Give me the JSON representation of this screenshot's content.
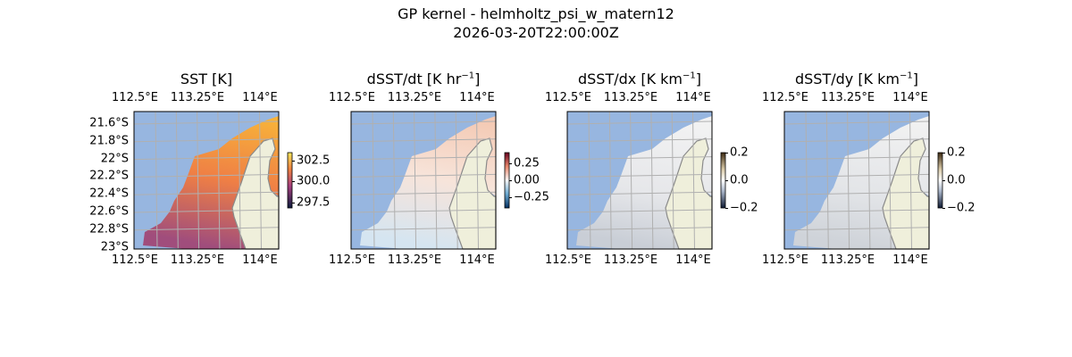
{
  "figure": {
    "title": "GP kernel - helmholtz_psi_w_matern12",
    "subtitle": "2026-03-20T22:00:00Z"
  },
  "colors": {
    "ocean": "#97b6e0",
    "land": "#efefdb",
    "coast": "#8a8a8a",
    "grid": "#b0b0b0"
  },
  "chart_data": [
    {
      "type": "heatmap",
      "title": "SST [K]",
      "colormap": "thermal",
      "xticks": [
        "112.5°E",
        "113.25°E",
        "114°E"
      ],
      "yticks": [
        "21.6°S",
        "21.8°S",
        "22°S",
        "22.2°S",
        "22.4°S",
        "22.6°S",
        "22.8°S",
        "23°S"
      ],
      "colorbar_ticks": [
        "302.5",
        "300.0",
        "297.5"
      ],
      "colorbar_range": [
        296.8,
        303.5
      ]
    },
    {
      "type": "heatmap",
      "title": "dSST/dt [K hr",
      "title_sup": "−1",
      "title_end": "]",
      "colormap": "RdBu_r",
      "xticks": [
        "112.5°E",
        "113.25°E",
        "114°E"
      ],
      "colorbar_ticks": [
        "0.25",
        "0.00",
        "−0.25"
      ],
      "colorbar_range": [
        -0.4,
        0.4
      ]
    },
    {
      "type": "heatmap",
      "title": "dSST/dx [K km",
      "title_sup": "−1",
      "title_end": "]",
      "colormap": "balance-gray",
      "xticks": [
        "112.5°E",
        "113.25°E",
        "114°E"
      ],
      "colorbar_ticks": [
        "0.2",
        "0.0",
        "−0.2"
      ],
      "colorbar_range": [
        -0.2,
        0.2
      ]
    },
    {
      "type": "heatmap",
      "title": "dSST/dy [K km",
      "title_sup": "−1",
      "title_end": "]",
      "colormap": "balance-gray",
      "xticks": [
        "112.5°E",
        "113.25°E",
        "114°E"
      ],
      "colorbar_ticks": [
        "0.2",
        "0.0",
        "−0.2"
      ],
      "colorbar_range": [
        -0.2,
        0.2
      ]
    }
  ]
}
